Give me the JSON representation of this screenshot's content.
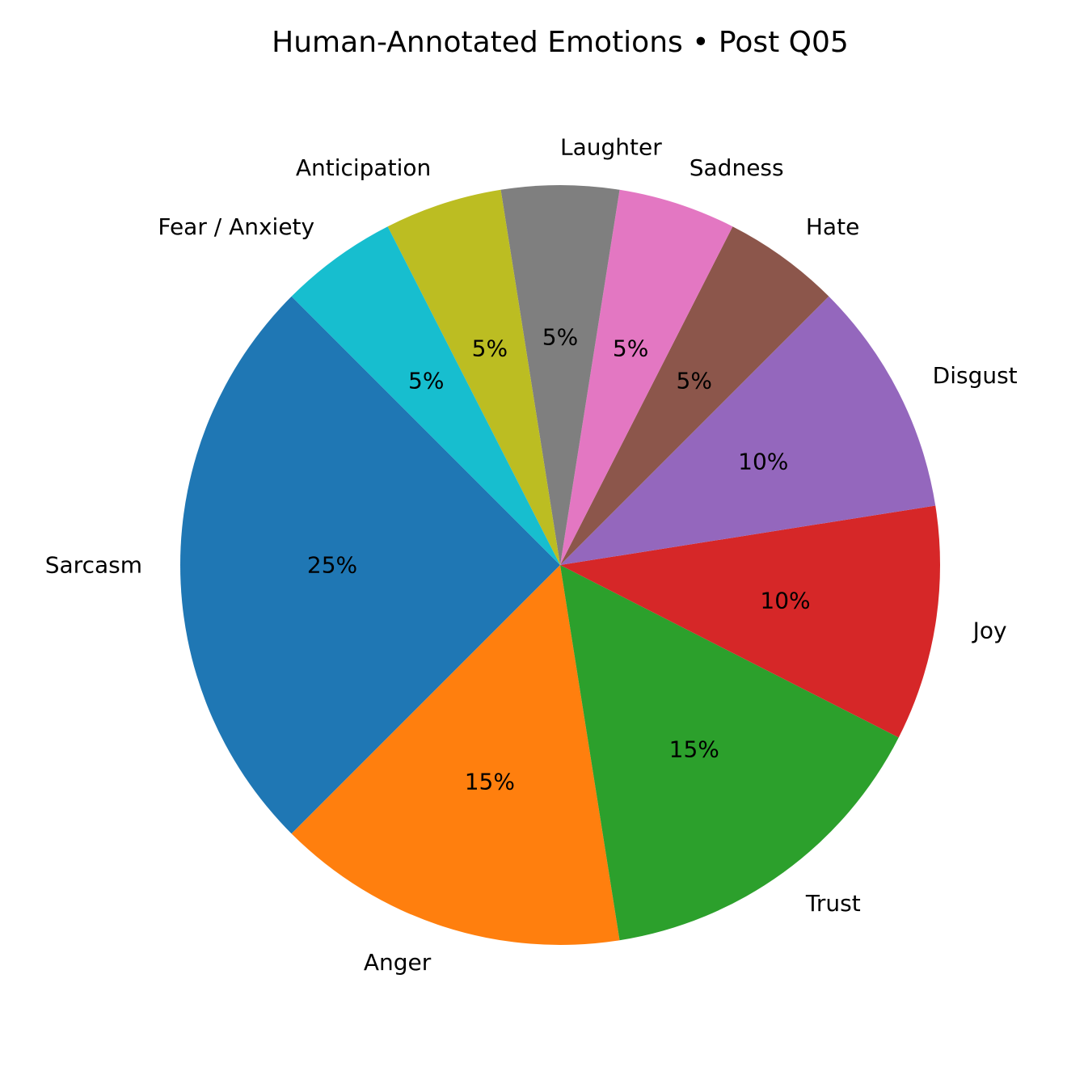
{
  "chart_data": {
    "type": "pie",
    "title": "Human-Annotated Emotions • Post Q05",
    "start_angle_deg": 135,
    "direction": "counterclockwise",
    "slices": [
      {
        "label": "Sarcasm",
        "value": 25,
        "pct_label": "25%",
        "color": "#1f77b4"
      },
      {
        "label": "Anger",
        "value": 15,
        "pct_label": "15%",
        "color": "#ff7f0e"
      },
      {
        "label": "Trust",
        "value": 15,
        "pct_label": "15%",
        "color": "#2ca02c"
      },
      {
        "label": "Joy",
        "value": 10,
        "pct_label": "10%",
        "color": "#d62728"
      },
      {
        "label": "Disgust",
        "value": 10,
        "pct_label": "10%",
        "color": "#9467bd"
      },
      {
        "label": "Hate",
        "value": 5,
        "pct_label": "5%",
        "color": "#8c564b"
      },
      {
        "label": "Sadness",
        "value": 5,
        "pct_label": "5%",
        "color": "#e377c2"
      },
      {
        "label": "Laughter",
        "value": 5,
        "pct_label": "5%",
        "color": "#7f7f7f"
      },
      {
        "label": "Anticipation",
        "value": 5,
        "pct_label": "5%",
        "color": "#bcbd22"
      },
      {
        "label": "Fear / Anxiety",
        "value": 5,
        "pct_label": "5%",
        "color": "#17becf"
      }
    ]
  }
}
